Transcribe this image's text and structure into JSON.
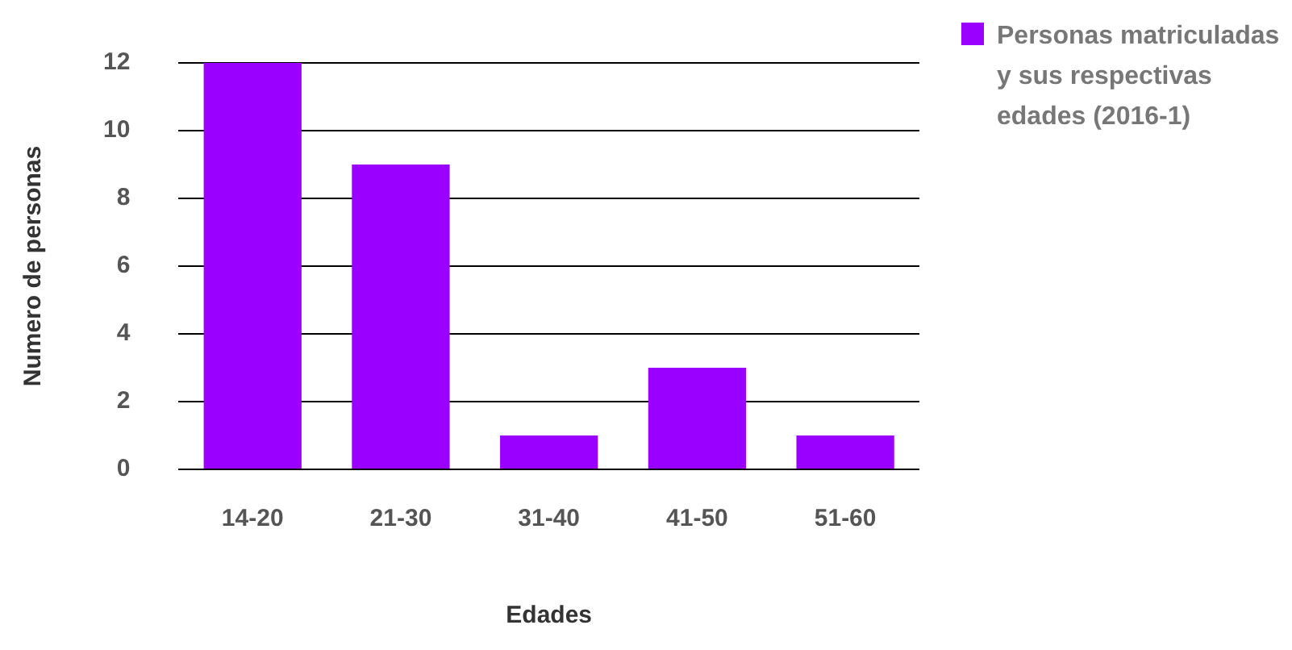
{
  "chart_data": {
    "type": "bar",
    "xlabel": "Edades",
    "ylabel": "Numero de personas",
    "categories": [
      "14-20",
      "21-30",
      "31-40",
      "41-50",
      "51-60"
    ],
    "series": [
      {
        "name": "Personas matriculadas y sus respectivas edades (2016-1)",
        "color": "#9900ff",
        "values": [
          12,
          9,
          1,
          3,
          1
        ]
      }
    ],
    "ylim": [
      0,
      12
    ],
    "yticks": [
      0,
      2,
      4,
      6,
      8,
      10,
      12
    ],
    "grid": "y",
    "legend": "top right"
  }
}
